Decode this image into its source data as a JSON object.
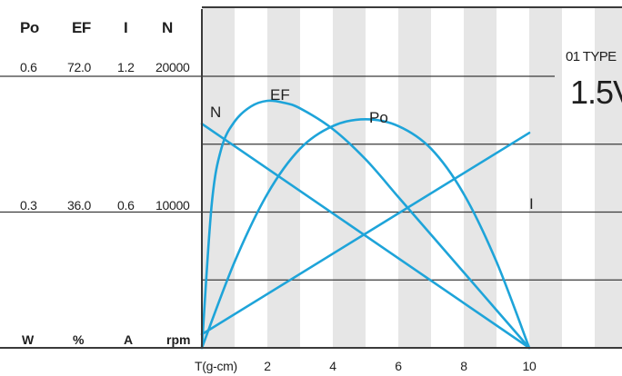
{
  "header": {
    "po": "Po",
    "ef": "EF",
    "i": "I",
    "n": "N"
  },
  "units": {
    "po": "W",
    "ef": "%",
    "i": "A",
    "n": "rpm"
  },
  "scale_top": {
    "po": "0.6",
    "ef": "72.0",
    "i": "1.2",
    "n": "20000"
  },
  "scale_mid": {
    "po": "0.3",
    "ef": "36.0",
    "i": "0.6",
    "n": "10000"
  },
  "model": {
    "type": "01 TYPE",
    "voltage": "1.5V"
  },
  "colors": {
    "curve": "#1ea4d9",
    "stripe": "#e6e6e6",
    "line": "#3a3a3a"
  },
  "chart_data": {
    "type": "line",
    "xlabel": "T(g-cm)",
    "xlim": [
      0,
      10
    ],
    "x_ticks": [
      2,
      4,
      6,
      8,
      10
    ],
    "grid": true,
    "series": [
      {
        "name": "N",
        "unit": "rpm",
        "ylim": [
          0,
          20000
        ],
        "x": [
          0,
          10
        ],
        "y": [
          16500,
          0
        ]
      },
      {
        "name": "I",
        "unit": "A",
        "ylim": [
          0,
          1.2
        ],
        "x": [
          0,
          10
        ],
        "y": [
          0.06,
          0.95
        ]
      },
      {
        "name": "EF",
        "unit": "%",
        "ylim": [
          0,
          72
        ],
        "x": [
          0,
          0.3,
          0.6,
          1,
          1.5,
          2,
          2.5,
          3,
          4,
          5,
          6,
          7,
          8,
          9,
          10
        ],
        "y": [
          0,
          38,
          53,
          60,
          64,
          65.5,
          65,
          63.5,
          58,
          50,
          40,
          30,
          20,
          10,
          0
        ]
      },
      {
        "name": "Po",
        "unit": "W",
        "ylim": [
          0,
          0.6
        ],
        "x": [
          0,
          1,
          2,
          3,
          4,
          5,
          6,
          7,
          8,
          9,
          10
        ],
        "y": [
          0,
          0.19,
          0.34,
          0.44,
          0.49,
          0.505,
          0.49,
          0.44,
          0.34,
          0.19,
          0
        ]
      }
    ],
    "curve_labels": [
      "N",
      "EF",
      "Po",
      "I"
    ]
  }
}
